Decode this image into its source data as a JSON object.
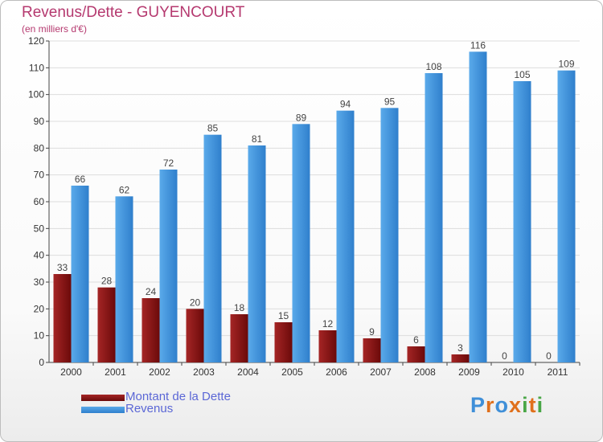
{
  "title": "Revenus/Dette - GUYENCOURT",
  "subtitle": "(en milliers d'€)",
  "colors": {
    "title": "#b5396f",
    "legend_text": "#5b67d6",
    "dette": "#6b0a0a",
    "dette_light": "#a52525",
    "revenus": "#2f7fcc",
    "revenus_light": "#5aaaea",
    "grid": "#dddddd"
  },
  "legend": {
    "dette_label": "Montant de la Dette",
    "revenus_label": "Revenus"
  },
  "logo": {
    "text": "Proxiti",
    "letter_colors": [
      "#3f8fd8",
      "#e0701c",
      "#3f8fd8",
      "#e0701c",
      "#49a646",
      "#e0701c",
      "#49a646"
    ]
  },
  "chart_data": {
    "type": "bar",
    "title": "Revenus/Dette - GUYENCOURT",
    "subtitle": "(en milliers d'€)",
    "xlabel": "",
    "ylabel": "",
    "ylim": [
      0,
      120
    ],
    "yticks": [
      0,
      10,
      20,
      30,
      40,
      50,
      60,
      70,
      80,
      90,
      100,
      110,
      120
    ],
    "grid": true,
    "legend_position": "bottom-left",
    "categories": [
      "2000",
      "2001",
      "2002",
      "2003",
      "2004",
      "2005",
      "2006",
      "2007",
      "2008",
      "2009",
      "2010",
      "2011"
    ],
    "series": [
      {
        "name": "Montant de la Dette",
        "values": [
          33,
          28,
          24,
          20,
          18,
          15,
          12,
          9,
          6,
          3,
          0,
          0
        ]
      },
      {
        "name": "Revenus",
        "values": [
          66,
          62,
          72,
          85,
          81,
          89,
          94,
          95,
          108,
          116,
          105,
          109
        ]
      }
    ]
  }
}
